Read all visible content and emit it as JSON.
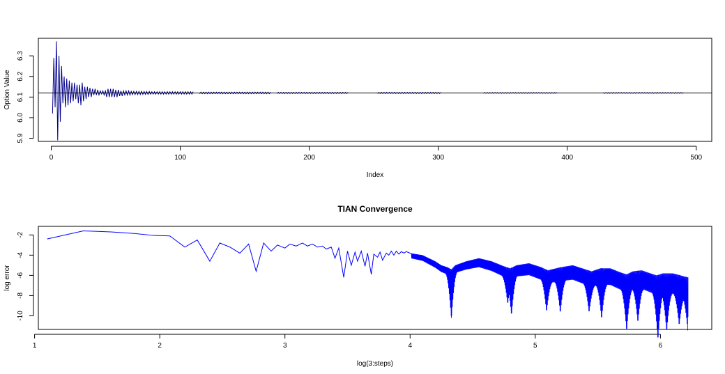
{
  "chart_data": [
    {
      "type": "line",
      "title": "",
      "xlabel": "Index",
      "ylabel": "Option Value",
      "xlim": [
        -10,
        512
      ],
      "ylim": [
        5.885,
        6.385
      ],
      "xticks": [
        0,
        100,
        200,
        300,
        400,
        500
      ],
      "xtick_labels": [
        "0",
        "100",
        "200",
        "300",
        "400",
        "500"
      ],
      "yticks": [
        5.9,
        6.0,
        6.1,
        6.2,
        6.3
      ],
      "ytick_labels": [
        "5.9",
        "6.0",
        "6.1",
        "6.2",
        "6.3"
      ],
      "line_color": "#00008b",
      "reference_line": {
        "y": 6.12,
        "color": "#000000"
      },
      "series": [
        {
          "values": [
            6.02,
            6.29,
            6.05,
            6.37,
            5.89,
            6.3,
            5.98,
            6.25,
            6.07,
            6.2,
            6.05,
            6.19,
            6.06,
            6.18,
            6.07,
            6.17,
            6.08,
            6.17,
            6.09,
            6.16,
            6.07,
            6.16,
            6.06,
            6.17,
            6.08,
            6.15,
            6.09,
            6.15,
            6.1,
            6.145,
            6.1,
            6.14,
            6.11,
            6.14,
            6.11,
            6.135,
            6.11,
            6.13,
            6.115,
            6.13,
            6.11,
            6.13,
            6.1,
            6.14,
            6.1,
            6.14,
            6.1,
            6.14,
            6.1,
            6.135,
            6.1,
            6.135,
            6.105,
            6.13,
            6.105,
            6.13,
            6.11,
            6.13,
            6.11,
            6.13,
            6.11,
            6.128,
            6.112,
            6.128,
            6.112,
            6.128,
            6.112,
            6.128,
            6.112,
            6.128,
            6.113,
            6.127,
            6.113,
            6.127,
            6.113,
            6.127,
            6.114,
            6.126,
            6.114,
            6.126,
            6.114
          ]
        }
      ],
      "tail_band": {
        "center": 6.12,
        "segments": [
          [
            80,
            110,
            0.006
          ],
          [
            115,
            170,
            0.004
          ],
          [
            175,
            230,
            0.003
          ],
          [
            253,
            302,
            0.003
          ],
          [
            335,
            392,
            0.002
          ],
          [
            428,
            490,
            0.002
          ]
        ]
      }
    },
    {
      "type": "line",
      "title": "TIAN Convergence",
      "xlabel": "log(3:steps)",
      "ylabel": "log error",
      "xlim": [
        1.03,
        6.41
      ],
      "ylim": [
        -11.35,
        -1.15
      ],
      "xticks": [
        1,
        2,
        3,
        4,
        5,
        6
      ],
      "xtick_labels": [
        "1",
        "2",
        "3",
        "4",
        "5",
        "6"
      ],
      "yticks": [
        -2,
        -4,
        -6,
        -8,
        -10
      ],
      "ytick_labels": [
        "-2",
        "-4",
        "-6",
        "-8",
        "-10"
      ],
      "line_color": "#0000ff",
      "series": [
        {
          "points": [
            [
              1.1,
              -2.4
            ],
            [
              1.39,
              -1.6
            ],
            [
              1.61,
              -1.7
            ],
            [
              1.79,
              -1.85
            ],
            [
              1.95,
              -2.05
            ],
            [
              2.08,
              -2.1
            ],
            [
              2.2,
              -3.2
            ],
            [
              2.3,
              -2.5
            ],
            [
              2.4,
              -4.6
            ],
            [
              2.48,
              -2.8
            ],
            [
              2.56,
              -3.2
            ],
            [
              2.64,
              -3.8
            ],
            [
              2.71,
              -2.9
            ],
            [
              2.77,
              -5.6
            ],
            [
              2.83,
              -2.8
            ],
            [
              2.89,
              -3.6
            ],
            [
              2.94,
              -3.0
            ],
            [
              3.0,
              -3.3
            ],
            [
              3.04,
              -2.9
            ],
            [
              3.09,
              -3.1
            ],
            [
              3.14,
              -2.8
            ],
            [
              3.18,
              -3.1
            ],
            [
              3.22,
              -2.9
            ],
            [
              3.26,
              -3.2
            ],
            [
              3.3,
              -3.1
            ],
            [
              3.33,
              -3.4
            ],
            [
              3.37,
              -3.2
            ],
            [
              3.4,
              -4.3
            ],
            [
              3.43,
              -3.3
            ],
            [
              3.47,
              -6.2
            ],
            [
              3.5,
              -3.6
            ],
            [
              3.53,
              -5.0
            ],
            [
              3.56,
              -3.7
            ],
            [
              3.58,
              -4.6
            ],
            [
              3.61,
              -3.6
            ],
            [
              3.64,
              -5.1
            ],
            [
              3.66,
              -3.8
            ],
            [
              3.69,
              -5.9
            ],
            [
              3.71,
              -3.9
            ],
            [
              3.74,
              -4.2
            ],
            [
              3.76,
              -3.7
            ],
            [
              3.78,
              -4.5
            ],
            [
              3.81,
              -3.8
            ],
            [
              3.83,
              -4.0
            ],
            [
              3.85,
              -3.6
            ],
            [
              3.87,
              -4.0
            ],
            [
              3.89,
              -3.6
            ],
            [
              3.91,
              -3.9
            ],
            [
              3.93,
              -3.65
            ],
            [
              3.95,
              -3.8
            ],
            [
              3.97,
              -3.65
            ],
            [
              3.99,
              -3.75
            ],
            [
              4.01,
              -3.85
            ]
          ]
        }
      ],
      "envelope": [
        [
          4.0,
          -3.8
        ],
        [
          4.1,
          -4.0
        ],
        [
          4.2,
          -4.6
        ],
        [
          4.25,
          -5.0
        ],
        [
          4.3,
          -5.2
        ],
        [
          4.33,
          -5.4
        ],
        [
          4.36,
          -5.0
        ],
        [
          4.45,
          -4.6
        ],
        [
          4.55,
          -4.3
        ],
        [
          4.65,
          -4.6
        ],
        [
          4.75,
          -5.1
        ],
        [
          4.8,
          -5.3
        ],
        [
          4.85,
          -5.0
        ],
        [
          4.95,
          -4.8
        ],
        [
          5.05,
          -5.2
        ],
        [
          5.1,
          -5.5
        ],
        [
          5.2,
          -5.2
        ],
        [
          5.3,
          -5.0
        ],
        [
          5.4,
          -5.4
        ],
        [
          5.45,
          -5.6
        ],
        [
          5.52,
          -5.3
        ],
        [
          5.6,
          -5.3
        ],
        [
          5.68,
          -5.7
        ],
        [
          5.73,
          -5.9
        ],
        [
          5.78,
          -5.6
        ],
        [
          5.85,
          -5.5
        ],
        [
          5.92,
          -5.8
        ],
        [
          5.97,
          -6.0
        ],
        [
          6.02,
          -5.8
        ],
        [
          6.1,
          -5.8
        ],
        [
          6.16,
          -6.0
        ],
        [
          6.22,
          -6.2
        ]
      ],
      "dips": [
        [
          4.33,
          -10.2
        ],
        [
          4.78,
          -8.2
        ],
        [
          4.81,
          -9.5
        ],
        [
          5.09,
          -8.8
        ],
        [
          5.2,
          -8.9
        ],
        [
          5.43,
          -8.6
        ],
        [
          5.53,
          -9.3
        ],
        [
          5.73,
          -10.4
        ],
        [
          5.82,
          -9.4
        ],
        [
          5.98,
          -11.2
        ],
        [
          6.05,
          -10.2
        ],
        [
          6.15,
          -9.4
        ],
        [
          6.22,
          -10.1
        ]
      ]
    }
  ]
}
